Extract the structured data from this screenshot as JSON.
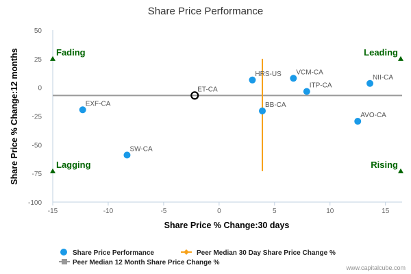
{
  "chart_data": {
    "type": "scatter",
    "title": "Share Price Performance",
    "xlabel": "Share Price % Change:30 days",
    "ylabel": "Share Price % Change:12 months",
    "xlim": [
      -15,
      16.5
    ],
    "ylim": [
      -100,
      50
    ],
    "xticks": [
      -15,
      -10,
      -5,
      0,
      5,
      10,
      15
    ],
    "yticks": [
      50,
      25,
      0,
      -25,
      -50,
      -75,
      -100
    ],
    "xtick_labels": [
      "-15",
      "-10",
      "-5",
      "0",
      "5",
      "10",
      "15"
    ],
    "ytick_labels": [
      "50",
      "25",
      "0",
      "-25",
      "-50",
      "-75",
      "-100"
    ],
    "series_color": "#1a9ae8",
    "points": [
      {
        "label": "HRS-US",
        "x": 3.0,
        "y": 6.5
      },
      {
        "label": "VCM-CA",
        "x": 6.7,
        "y": 8.0
      },
      {
        "label": "ITP-CA",
        "x": 7.9,
        "y": -3.5
      },
      {
        "label": "NII-CA",
        "x": 13.6,
        "y": 3.5
      },
      {
        "label": "BB-CA",
        "x": 3.9,
        "y": -20.5
      },
      {
        "label": "AVO-CA",
        "x": 12.5,
        "y": -29.5
      },
      {
        "label": "EXF-CA",
        "x": -12.3,
        "y": -19.5
      },
      {
        "label": "SW-CA",
        "x": -8.3,
        "y": -59.0
      }
    ],
    "highlight_point": {
      "label": "ET-CA",
      "x": -2.2,
      "y": -7.0
    },
    "peer_median_30d": {
      "value": 3.9,
      "y_range": [
        -73,
        25
      ],
      "color": "#f7a21b"
    },
    "peer_median_12m": {
      "value": -7.0,
      "color": "#999999"
    },
    "quadrants": {
      "top_left": "Fading",
      "top_right": "Leading",
      "bottom_left": "Lagging",
      "bottom_right": "Rising",
      "color": "#006400"
    },
    "grid": false,
    "legend_position": "bottom-left",
    "legend": [
      "Share Price Performance",
      "Peer Median 30 Day Share Price Change %",
      "Peer Median 12 Month Share Price Change %"
    ]
  },
  "credit": "www.capitalcube.com"
}
